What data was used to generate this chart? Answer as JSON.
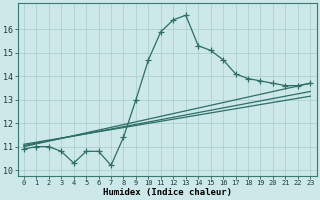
{
  "title": "",
  "xlabel": "Humidex (Indice chaleur)",
  "ylabel": "",
  "bg_color": "#cce8e8",
  "grid_color": "#aacccc",
  "line_color": "#2d6e65",
  "xlim": [
    -0.5,
    23.5
  ],
  "ylim": [
    9.75,
    17.1
  ],
  "xticks": [
    0,
    1,
    2,
    3,
    4,
    5,
    6,
    7,
    8,
    9,
    10,
    11,
    12,
    13,
    14,
    15,
    16,
    17,
    18,
    19,
    20,
    21,
    22,
    23
  ],
  "yticks": [
    10,
    11,
    12,
    13,
    14,
    15,
    16
  ],
  "line1_x": [
    0,
    1,
    2,
    3,
    4,
    5,
    6,
    7,
    8,
    9,
    10,
    11,
    12,
    13,
    14,
    15,
    16,
    17,
    18,
    19,
    20,
    21,
    22,
    23
  ],
  "line1_y": [
    10.9,
    11.0,
    11.0,
    10.8,
    10.3,
    10.8,
    10.8,
    10.2,
    11.4,
    13.0,
    14.7,
    15.9,
    16.4,
    16.6,
    15.3,
    15.1,
    14.7,
    14.1,
    13.9,
    13.8,
    13.7,
    13.6,
    13.6,
    13.7
  ],
  "line2_x": [
    0,
    23
  ],
  "line2_y": [
    11.0,
    13.7
  ],
  "line3_x": [
    0,
    23
  ],
  "line3_y": [
    11.05,
    13.35
  ],
  "line4_x": [
    0,
    23
  ],
  "line4_y": [
    11.1,
    13.15
  ],
  "marker_size": 4,
  "line_width": 0.9
}
